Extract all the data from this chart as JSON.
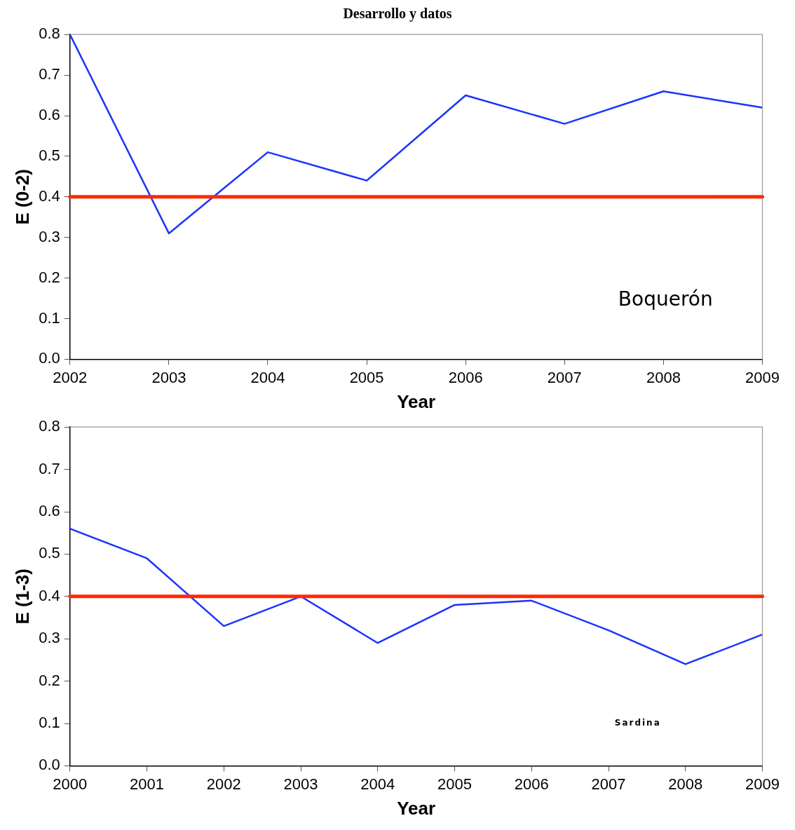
{
  "chart_data": [
    {
      "type": "line",
      "title": "Desarrollo y datos",
      "xlabel": "Year",
      "ylabel": "E (0-2)",
      "x": [
        2002,
        2003,
        2004,
        2005,
        2006,
        2007,
        2008,
        2009
      ],
      "series": [
        {
          "color": "#1a33ff",
          "values": [
            0.8,
            0.31,
            0.51,
            0.44,
            0.65,
            0.58,
            0.66,
            0.62
          ]
        }
      ],
      "xlim": [
        2002,
        2009
      ],
      "xticks": [
        2002,
        2003,
        2004,
        2005,
        2006,
        2007,
        2008,
        2009
      ],
      "ylim": [
        0,
        0.8
      ],
      "yticks": [
        {
          "value": 0,
          "label": "0.0"
        },
        0.1,
        0.2,
        0.3,
        0.4,
        0.5,
        0.6,
        0.7,
        0.8
      ],
      "ref_lines": [
        {
          "axis": "y",
          "value": 0.4,
          "color": "#ff2a00"
        }
      ],
      "annotations": [
        "Boquerón"
      ],
      "grid": false,
      "legend": false,
      "marker": "none"
    },
    {
      "type": "line",
      "xlabel": "Year",
      "ylabel": "E (1-3)",
      "x": [
        2000,
        2001,
        2002,
        2003,
        2004,
        2005,
        2006,
        2007,
        2008,
        2009
      ],
      "series": [
        {
          "color": "#1a33ff",
          "values": [
            0.56,
            0.49,
            0.33,
            0.4,
            0.29,
            0.38,
            0.39,
            0.32,
            0.24,
            0.31
          ]
        }
      ],
      "xlim": [
        2000,
        2009
      ],
      "xticks": [
        2000,
        2001,
        2002,
        2003,
        2004,
        2005,
        2006,
        2007,
        2008,
        2009
      ],
      "ylim": [
        0,
        0.8
      ],
      "yticks": [
        {
          "value": 0,
          "label": "0.0"
        },
        0.1,
        0.2,
        0.3,
        0.4,
        0.5,
        0.6,
        0.7,
        0.8
      ],
      "ref_lines": [
        {
          "axis": "y",
          "value": 0.4,
          "color": "#ff2a00"
        }
      ],
      "annotations": [
        "Sardina"
      ],
      "grid": false,
      "legend": false,
      "marker": "none"
    }
  ]
}
